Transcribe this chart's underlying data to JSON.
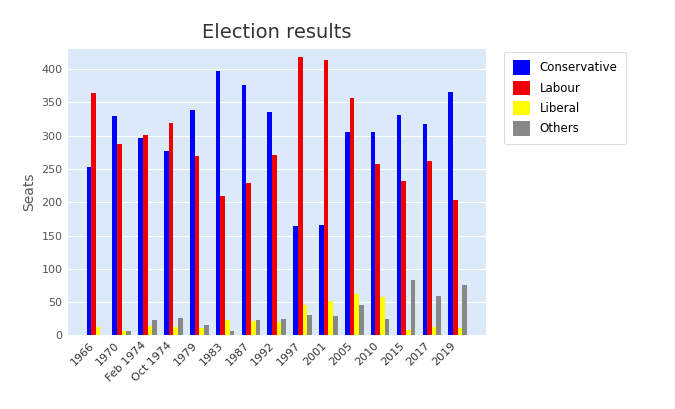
{
  "title": "Election results",
  "ylabel": "Seats",
  "elections": [
    "1966",
    "1970",
    "Feb 1974",
    "Oct 1974",
    "1979",
    "1983",
    "1987",
    "1992",
    "1997",
    "2001",
    "2005",
    "2010",
    "2015",
    "2017",
    "2019"
  ],
  "conservative": [
    253,
    330,
    297,
    277,
    339,
    397,
    376,
    336,
    165,
    166,
    306,
    306,
    331,
    317,
    365
  ],
  "labour": [
    364,
    287,
    301,
    319,
    269,
    209,
    229,
    271,
    418,
    413,
    356,
    258,
    232,
    262,
    203
  ],
  "liberal": [
    12,
    6,
    14,
    13,
    11,
    23,
    22,
    20,
    46,
    52,
    62,
    57,
    8,
    12,
    11
  ],
  "others": [
    1,
    7,
    23,
    26,
    16,
    6,
    23,
    24,
    30,
    29,
    46,
    25,
    83,
    59,
    75
  ],
  "colors": {
    "conservative": "#0000ff",
    "labour": "#ee0000",
    "liberal": "#ffff00",
    "others": "#888888"
  },
  "plot_bg": "#dce9f8",
  "fig_bg": "#ffffff",
  "ylim": [
    0,
    430
  ],
  "bar_width": 0.18,
  "title_fontsize": 14,
  "tick_fontsize": 8,
  "ylabel_fontsize": 10
}
